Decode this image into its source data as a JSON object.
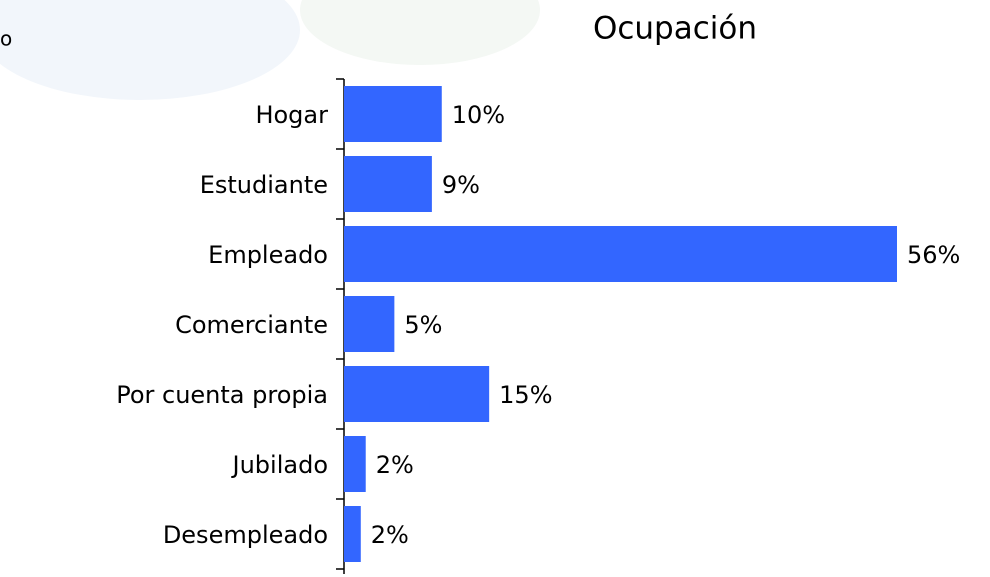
{
  "corner_text": "o",
  "chart_data": {
    "type": "hbar",
    "title": "Ocupación",
    "categories": [
      "Hogar",
      "Estudiante",
      "Empleado",
      "Comerciante",
      "Por cuenta propia",
      "Jubilado",
      "Desempleado"
    ],
    "values": [
      9.9,
      8.9,
      56,
      5.1,
      14.7,
      2.2,
      1.7
    ],
    "value_labels": [
      "10%",
      "9%",
      "56%",
      "5%",
      "15%",
      "2%",
      "2%"
    ],
    "color": "#3366ff",
    "xlim": [
      0,
      60
    ]
  }
}
